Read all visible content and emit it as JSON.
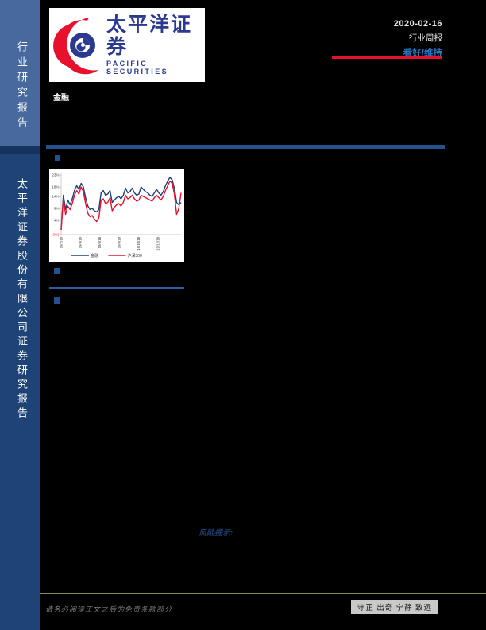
{
  "sidebar": {
    "top_label": "行业研究报告",
    "bottom_label": "太平洋证券股份有限公司证券研究报告",
    "top_bg": "#47699e",
    "bottom_bg": "#1e4377"
  },
  "logo": {
    "cn": "太平洋证券",
    "en": "PACIFIC SECURITIES",
    "red": "#e8112d",
    "blue": "#2b3990"
  },
  "header": {
    "category": "金融",
    "date": "2020-02-16",
    "report_type": "行业周报",
    "rating": "看好/维持",
    "rating_color": "#2878be",
    "red_rule_color": "#e8112d",
    "blue_rule_color": "#24518f"
  },
  "chart_data": {
    "type": "line",
    "title": "",
    "xlabel": "",
    "ylabel": "",
    "ylim": [
      -2,
      24
    ],
    "grid": false,
    "legend_position": "bottom",
    "y_ticks": [
      "23%",
      "18%",
      "14%",
      "9%",
      "4%",
      "(2%)"
    ],
    "y_tick_values": [
      23,
      18,
      14,
      9,
      4,
      -2
    ],
    "y_tick_negative_color": "#e8112d",
    "x_ticks": [
      "19/2/18",
      "19/4/18",
      "19/6/18",
      "19/8/18",
      "19/10/18",
      "19/12/18"
    ],
    "x_tick_positions": [
      0,
      8.6,
      17.4,
      26.1,
      34.9,
      43.6
    ],
    "x": [
      0,
      1,
      2,
      3,
      4,
      5,
      6,
      7,
      8,
      9,
      10,
      11,
      12,
      13,
      14,
      15,
      16,
      17,
      18,
      19,
      20,
      21,
      22,
      23,
      24,
      25,
      26,
      27,
      28,
      29,
      30,
      31,
      32,
      33,
      34,
      35,
      36,
      37,
      38,
      39,
      40,
      41,
      42,
      43,
      44,
      45,
      46,
      47,
      48,
      49,
      50,
      51,
      52,
      53,
      54
    ],
    "series": [
      {
        "name": "金融",
        "color": "#1f3f77",
        "values": [
          0,
          14.5,
          8.5,
          12.5,
          10.5,
          13,
          16.5,
          18.5,
          17,
          19.5,
          18,
          13.5,
          10,
          8.5,
          9,
          8,
          7.5,
          8.5,
          15.5,
          16.5,
          14.5,
          15,
          16.5,
          11.5,
          12.5,
          13.5,
          14,
          13,
          14.5,
          17.5,
          15.5,
          16,
          17.5,
          15.5,
          14.5,
          15,
          18,
          17,
          16,
          15.5,
          14.5,
          14,
          15.5,
          17,
          15.5,
          14.5,
          16,
          18.5,
          20.5,
          22,
          21,
          17.5,
          11.5,
          10.5,
          11.5
        ]
      },
      {
        "name": "沪深300",
        "color": "#e8112d",
        "values": [
          0,
          13,
          6.5,
          10,
          8.5,
          11,
          14.5,
          16.5,
          15,
          18,
          16,
          11,
          7,
          5.5,
          6,
          4.5,
          3.5,
          5,
          12.5,
          13,
          11,
          11.5,
          13.5,
          8,
          9.5,
          10.5,
          11,
          10,
          11.5,
          14.5,
          13,
          13.5,
          14.5,
          13,
          12,
          12.5,
          14.5,
          14,
          13.5,
          13,
          12.5,
          12,
          13.5,
          14.5,
          13.5,
          12.5,
          14,
          16.5,
          18.5,
          20.5,
          19.5,
          15,
          6.5,
          9,
          15.5
        ]
      }
    ]
  },
  "risk": {
    "label": "风险提示:"
  },
  "footer": {
    "disclaimer": "请务必阅读正文之后的免责条款部分",
    "motto": "守正 出奇 宁静 致远",
    "rule_color": "#8f8a4d"
  }
}
